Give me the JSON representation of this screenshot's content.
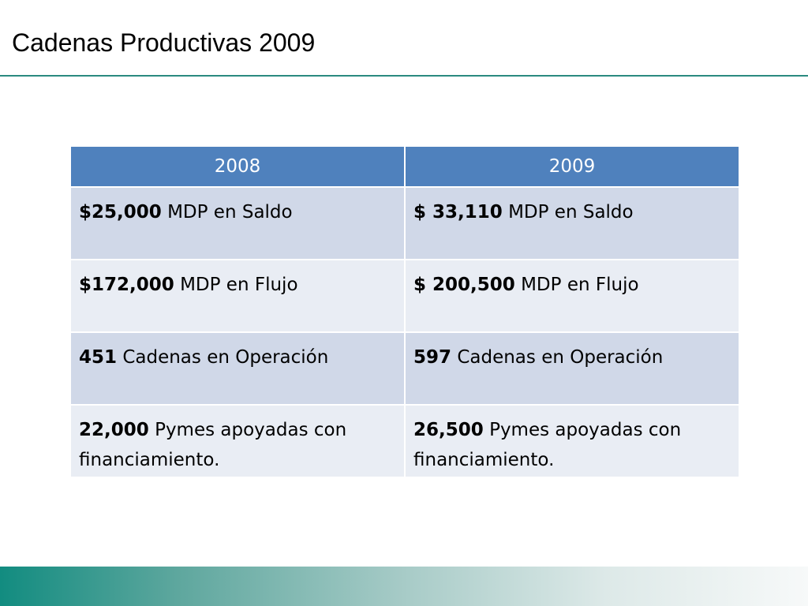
{
  "title": "Cadenas Productivas 2009",
  "table": {
    "headers": [
      "2008",
      "2009"
    ],
    "rows": [
      [
        {
          "value": "$25,000",
          "text": " MDP en Saldo"
        },
        {
          "value": "$ 33,110",
          "text": " MDP en Saldo"
        }
      ],
      [
        {
          "value": "$172,000",
          "text": " MDP en Flujo"
        },
        {
          "value": "$ 200,500",
          "text": " MDP en Flujo"
        }
      ],
      [
        {
          "value": "451",
          "text": " Cadenas en Operación"
        },
        {
          "value": "597",
          "text": " Cadenas en Operación"
        }
      ],
      [
        {
          "value": "22,000",
          "text": " Pymes apoyadas con financiamiento."
        },
        {
          "value": "26,500",
          "text": " Pymes apoyadas con financiamiento."
        }
      ]
    ]
  },
  "colors": {
    "header_fill": "#4f81bd",
    "row_odd_fill": "#d0d8e8",
    "row_even_fill": "#e9edf4",
    "accent_teal": "#2a8a80"
  }
}
